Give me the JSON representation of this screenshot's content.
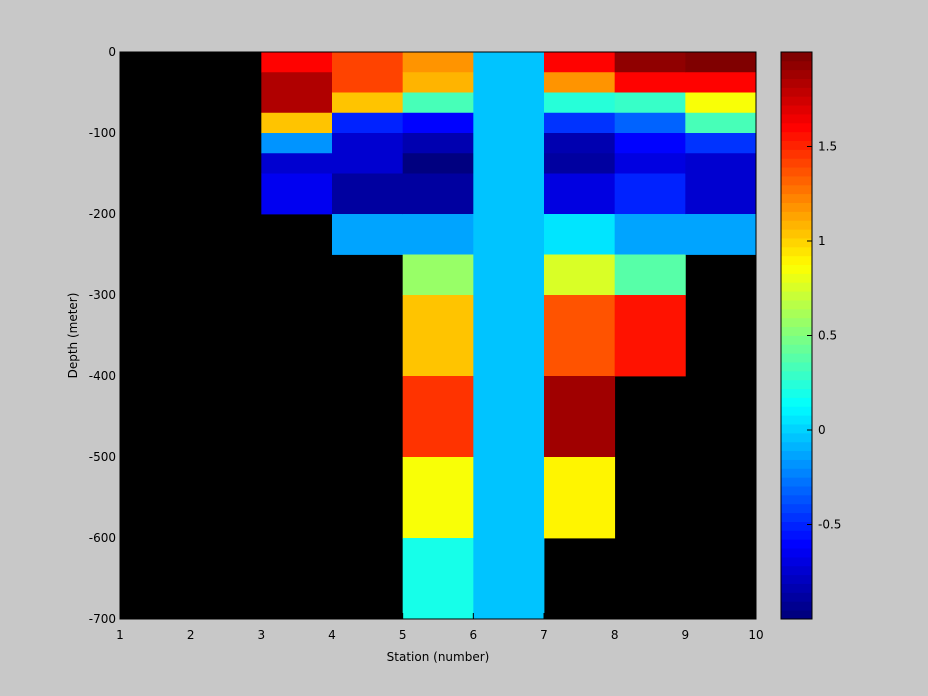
{
  "chart_data": {
    "type": "heatmap",
    "xlabel": "Station (number)",
    "ylabel": "Depth (meter)",
    "xlim": [
      1,
      10
    ],
    "ylim": [
      -700,
      0
    ],
    "x_ticks": [
      1,
      2,
      3,
      4,
      5,
      6,
      7,
      8,
      9,
      10
    ],
    "y_ticks": [
      0,
      -100,
      -200,
      -300,
      -400,
      -500,
      -600,
      -700
    ],
    "missing_color": "#000000",
    "colormap": "jet",
    "colorbar": {
      "range": [
        -1,
        2
      ],
      "ticks": [
        -0.5,
        0,
        0.5,
        1,
        1.5
      ],
      "levels": 64,
      "position": "right"
    },
    "columns": [
      {
        "station_range": [
          3,
          4
        ],
        "cells": [
          {
            "depth": [
              0,
              -25
            ],
            "value": 1.62
          },
          {
            "depth": [
              -25,
              -75
            ],
            "value": 1.83
          },
          {
            "depth": [
              -75,
              -100
            ],
            "value": 1.02
          },
          {
            "depth": [
              -100,
              -125
            ],
            "value": -0.18
          },
          {
            "depth": [
              -125,
              -150
            ],
            "value": -0.72
          },
          {
            "depth": [
              -150,
              -200
            ],
            "value": -0.65
          }
        ]
      },
      {
        "station_range": [
          4,
          5
        ],
        "cells": [
          {
            "depth": [
              0,
              -50
            ],
            "value": 1.42
          },
          {
            "depth": [
              -50,
              -75
            ],
            "value": 1.05
          },
          {
            "depth": [
              -75,
              -100
            ],
            "value": -0.5
          },
          {
            "depth": [
              -100,
              -150
            ],
            "value": -0.72
          },
          {
            "depth": [
              -150,
              -200
            ],
            "value": -0.9
          },
          {
            "depth": [
              -200,
              -250
            ],
            "value": -0.15
          }
        ]
      },
      {
        "station_range": [
          5,
          6
        ],
        "cells": [
          {
            "depth": [
              0,
              -25
            ],
            "value": 1.18
          },
          {
            "depth": [
              -25,
              -50
            ],
            "value": 1.1
          },
          {
            "depth": [
              -50,
              -75
            ],
            "value": 0.32
          },
          {
            "depth": [
              -75,
              -100
            ],
            "value": -0.58
          },
          {
            "depth": [
              -100,
              -125
            ],
            "value": -0.85
          },
          {
            "depth": [
              -125,
              -150
            ],
            "value": -0.97
          },
          {
            "depth": [
              -150,
              -200
            ],
            "value": -0.9
          },
          {
            "depth": [
              -200,
              -250
            ],
            "value": -0.15
          },
          {
            "depth": [
              -250,
              -300
            ],
            "value": 0.55
          },
          {
            "depth": [
              -300,
              -400
            ],
            "value": 1.03
          },
          {
            "depth": [
              -400,
              -500
            ],
            "value": 1.45
          },
          {
            "depth": [
              -500,
              -600
            ],
            "value": 0.85
          },
          {
            "depth": [
              -600,
              -700
            ],
            "value": 0.18
          }
        ]
      },
      {
        "station_range": [
          6,
          7
        ],
        "cells": [
          {
            "depth": [
              0,
              -700
            ],
            "value": -0.05
          }
        ]
      },
      {
        "station_range": [
          7,
          8
        ],
        "cells": [
          {
            "depth": [
              0,
              -25
            ],
            "value": 1.62
          },
          {
            "depth": [
              -25,
              -50
            ],
            "value": 1.2
          },
          {
            "depth": [
              -50,
              -75
            ],
            "value": 0.22
          },
          {
            "depth": [
              -75,
              -100
            ],
            "value": -0.45
          },
          {
            "depth": [
              -100,
              -125
            ],
            "value": -0.85
          },
          {
            "depth": [
              -125,
              -150
            ],
            "value": -0.9
          },
          {
            "depth": [
              -150,
              -200
            ],
            "value": -0.68
          },
          {
            "depth": [
              -200,
              -250
            ],
            "value": 0.05
          },
          {
            "depth": [
              -250,
              -300
            ],
            "value": 0.75
          },
          {
            "depth": [
              -300,
              -400
            ],
            "value": 1.35
          },
          {
            "depth": [
              -400,
              -500
            ],
            "value": 1.9
          },
          {
            "depth": [
              -500,
              -600
            ],
            "value": 0.9
          }
        ]
      },
      {
        "station_range": [
          8,
          9
        ],
        "cells": [
          {
            "depth": [
              0,
              -25
            ],
            "value": 1.95
          },
          {
            "depth": [
              -25,
              -50
            ],
            "value": 1.62
          },
          {
            "depth": [
              -50,
              -75
            ],
            "value": 0.3
          },
          {
            "depth": [
              -75,
              -100
            ],
            "value": -0.3
          },
          {
            "depth": [
              -100,
              -125
            ],
            "value": -0.6
          },
          {
            "depth": [
              -125,
              -150
            ],
            "value": -0.68
          },
          {
            "depth": [
              -150,
              -200
            ],
            "value": -0.5
          },
          {
            "depth": [
              -200,
              -250
            ],
            "value": -0.12
          },
          {
            "depth": [
              -250,
              -300
            ],
            "value": 0.4
          },
          {
            "depth": [
              -300,
              -400
            ],
            "value": 1.55
          }
        ]
      },
      {
        "station_range": [
          9,
          10
        ],
        "cells": [
          {
            "depth": [
              0,
              -25
            ],
            "value": 1.98
          },
          {
            "depth": [
              -25,
              -50
            ],
            "value": 1.6
          },
          {
            "depth": [
              -50,
              -75
            ],
            "value": 0.85
          },
          {
            "depth": [
              -75,
              -100
            ],
            "value": 0.35
          },
          {
            "depth": [
              -100,
              -125
            ],
            "value": -0.45
          },
          {
            "depth": [
              -125,
              -150
            ],
            "value": -0.72
          },
          {
            "depth": [
              -150,
              -200
            ],
            "value": -0.75
          },
          {
            "depth": [
              -200,
              -250
            ],
            "value": -0.15
          }
        ]
      }
    ]
  }
}
